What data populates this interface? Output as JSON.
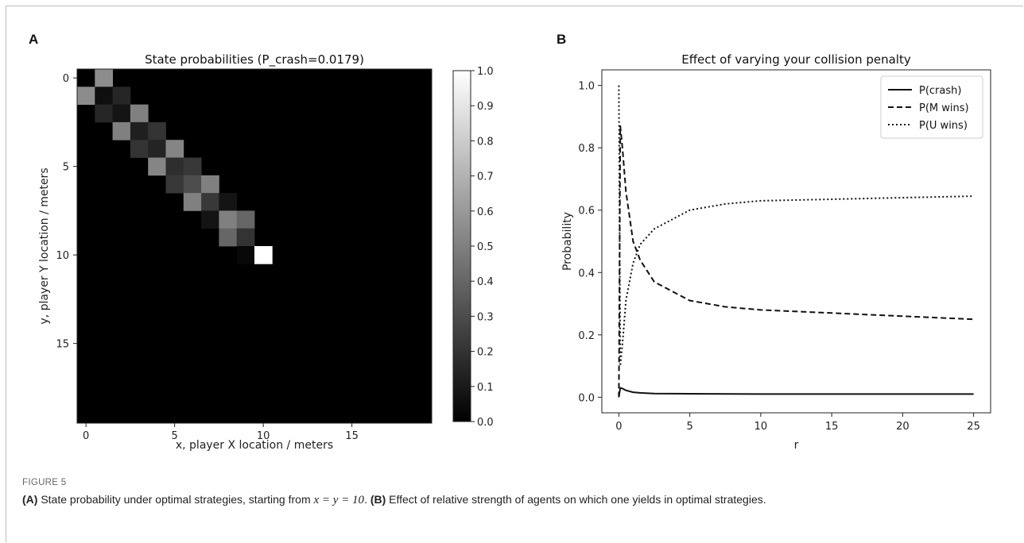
{
  "figure": {
    "panel_a_letter": "A",
    "panel_b_letter": "B",
    "caption_label": "FIGURE 5",
    "caption": {
      "a_tag": "(A)",
      "a_text_1": " State probability under optimal strategies, starting from ",
      "a_math": "x = y = 10",
      "a_text_2": ". ",
      "b_tag": "(B)",
      "b_text": " Effect of relative strength of agents on which one yields in optimal strategies."
    }
  },
  "chart_data": [
    {
      "type": "heatmap",
      "title": "State probabilities (P_crash=0.0179)",
      "xlabel": "x, player X location / meters",
      "ylabel": "y, player Y location / meters",
      "grid_size": 20,
      "x_ticks": [
        0,
        5,
        10,
        15
      ],
      "y_ticks": [
        0,
        5,
        10,
        15
      ],
      "colormap": "gray",
      "colorbar": {
        "min": 0.0,
        "max": 1.0,
        "ticks": [
          "0.0",
          "0.1",
          "0.2",
          "0.3",
          "0.4",
          "0.5",
          "0.6",
          "0.7",
          "0.8",
          "0.9",
          "1.0"
        ]
      },
      "cells": [
        {
          "x": 1,
          "y": 0,
          "v": 0.55
        },
        {
          "x": 0,
          "y": 1,
          "v": 0.55
        },
        {
          "x": 1,
          "y": 1,
          "v": 0.06
        },
        {
          "x": 2,
          "y": 1,
          "v": 0.15
        },
        {
          "x": 1,
          "y": 2,
          "v": 0.15
        },
        {
          "x": 2,
          "y": 2,
          "v": 0.08
        },
        {
          "x": 3,
          "y": 2,
          "v": 0.5
        },
        {
          "x": 2,
          "y": 3,
          "v": 0.5
        },
        {
          "x": 3,
          "y": 3,
          "v": 0.12
        },
        {
          "x": 4,
          "y": 3,
          "v": 0.2
        },
        {
          "x": 3,
          "y": 4,
          "v": 0.2
        },
        {
          "x": 4,
          "y": 4,
          "v": 0.14
        },
        {
          "x": 5,
          "y": 4,
          "v": 0.52
        },
        {
          "x": 4,
          "y": 5,
          "v": 0.52
        },
        {
          "x": 5,
          "y": 5,
          "v": 0.18
        },
        {
          "x": 6,
          "y": 5,
          "v": 0.22
        },
        {
          "x": 5,
          "y": 6,
          "v": 0.22
        },
        {
          "x": 6,
          "y": 6,
          "v": 0.3
        },
        {
          "x": 7,
          "y": 6,
          "v": 0.5
        },
        {
          "x": 6,
          "y": 7,
          "v": 0.5
        },
        {
          "x": 7,
          "y": 7,
          "v": 0.22
        },
        {
          "x": 8,
          "y": 7,
          "v": 0.08
        },
        {
          "x": 7,
          "y": 8,
          "v": 0.08
        },
        {
          "x": 8,
          "y": 8,
          "v": 0.5
        },
        {
          "x": 9,
          "y": 8,
          "v": 0.4
        },
        {
          "x": 8,
          "y": 9,
          "v": 0.4
        },
        {
          "x": 9,
          "y": 9,
          "v": 0.2
        },
        {
          "x": 9,
          "y": 10,
          "v": 0.03
        },
        {
          "x": 10,
          "y": 10,
          "v": 1.0
        }
      ]
    },
    {
      "type": "line",
      "title": "Effect of varying your collision penalty",
      "xlabel": "r",
      "ylabel": "Probability",
      "xlim": [
        -1.2,
        26.2
      ],
      "ylim": [
        -0.05,
        1.05
      ],
      "x_ticks": [
        0,
        5,
        10,
        15,
        20,
        25
      ],
      "y_ticks": [
        0.0,
        0.2,
        0.4,
        0.6,
        0.8,
        1.0
      ],
      "legend_position": "top-right",
      "series": [
        {
          "name": "P(crash)",
          "style": "solid",
          "x": [
            0,
            0.1,
            0.25,
            0.5,
            1,
            1.5,
            2.5,
            5,
            10,
            15,
            20,
            25
          ],
          "y": [
            0.0,
            0.03,
            0.028,
            0.022,
            0.016,
            0.014,
            0.012,
            0.011,
            0.01,
            0.01,
            0.01,
            0.01
          ]
        },
        {
          "name": "P(M wins)",
          "style": "dashed",
          "x": [
            0,
            0.1,
            0.25,
            0.5,
            1,
            1.5,
            2.5,
            5,
            7.5,
            10,
            15,
            20,
            25
          ],
          "y": [
            0.0,
            0.87,
            0.8,
            0.66,
            0.5,
            0.44,
            0.37,
            0.31,
            0.29,
            0.28,
            0.27,
            0.26,
            0.25
          ]
        },
        {
          "name": "P(U wins)",
          "style": "dotted",
          "x": [
            0,
            0.1,
            0.25,
            0.5,
            1,
            1.5,
            2.5,
            5,
            7.5,
            10,
            15,
            20,
            25
          ],
          "y": [
            1.0,
            0.1,
            0.17,
            0.31,
            0.43,
            0.49,
            0.54,
            0.6,
            0.62,
            0.63,
            0.635,
            0.64,
            0.645
          ]
        }
      ]
    }
  ]
}
